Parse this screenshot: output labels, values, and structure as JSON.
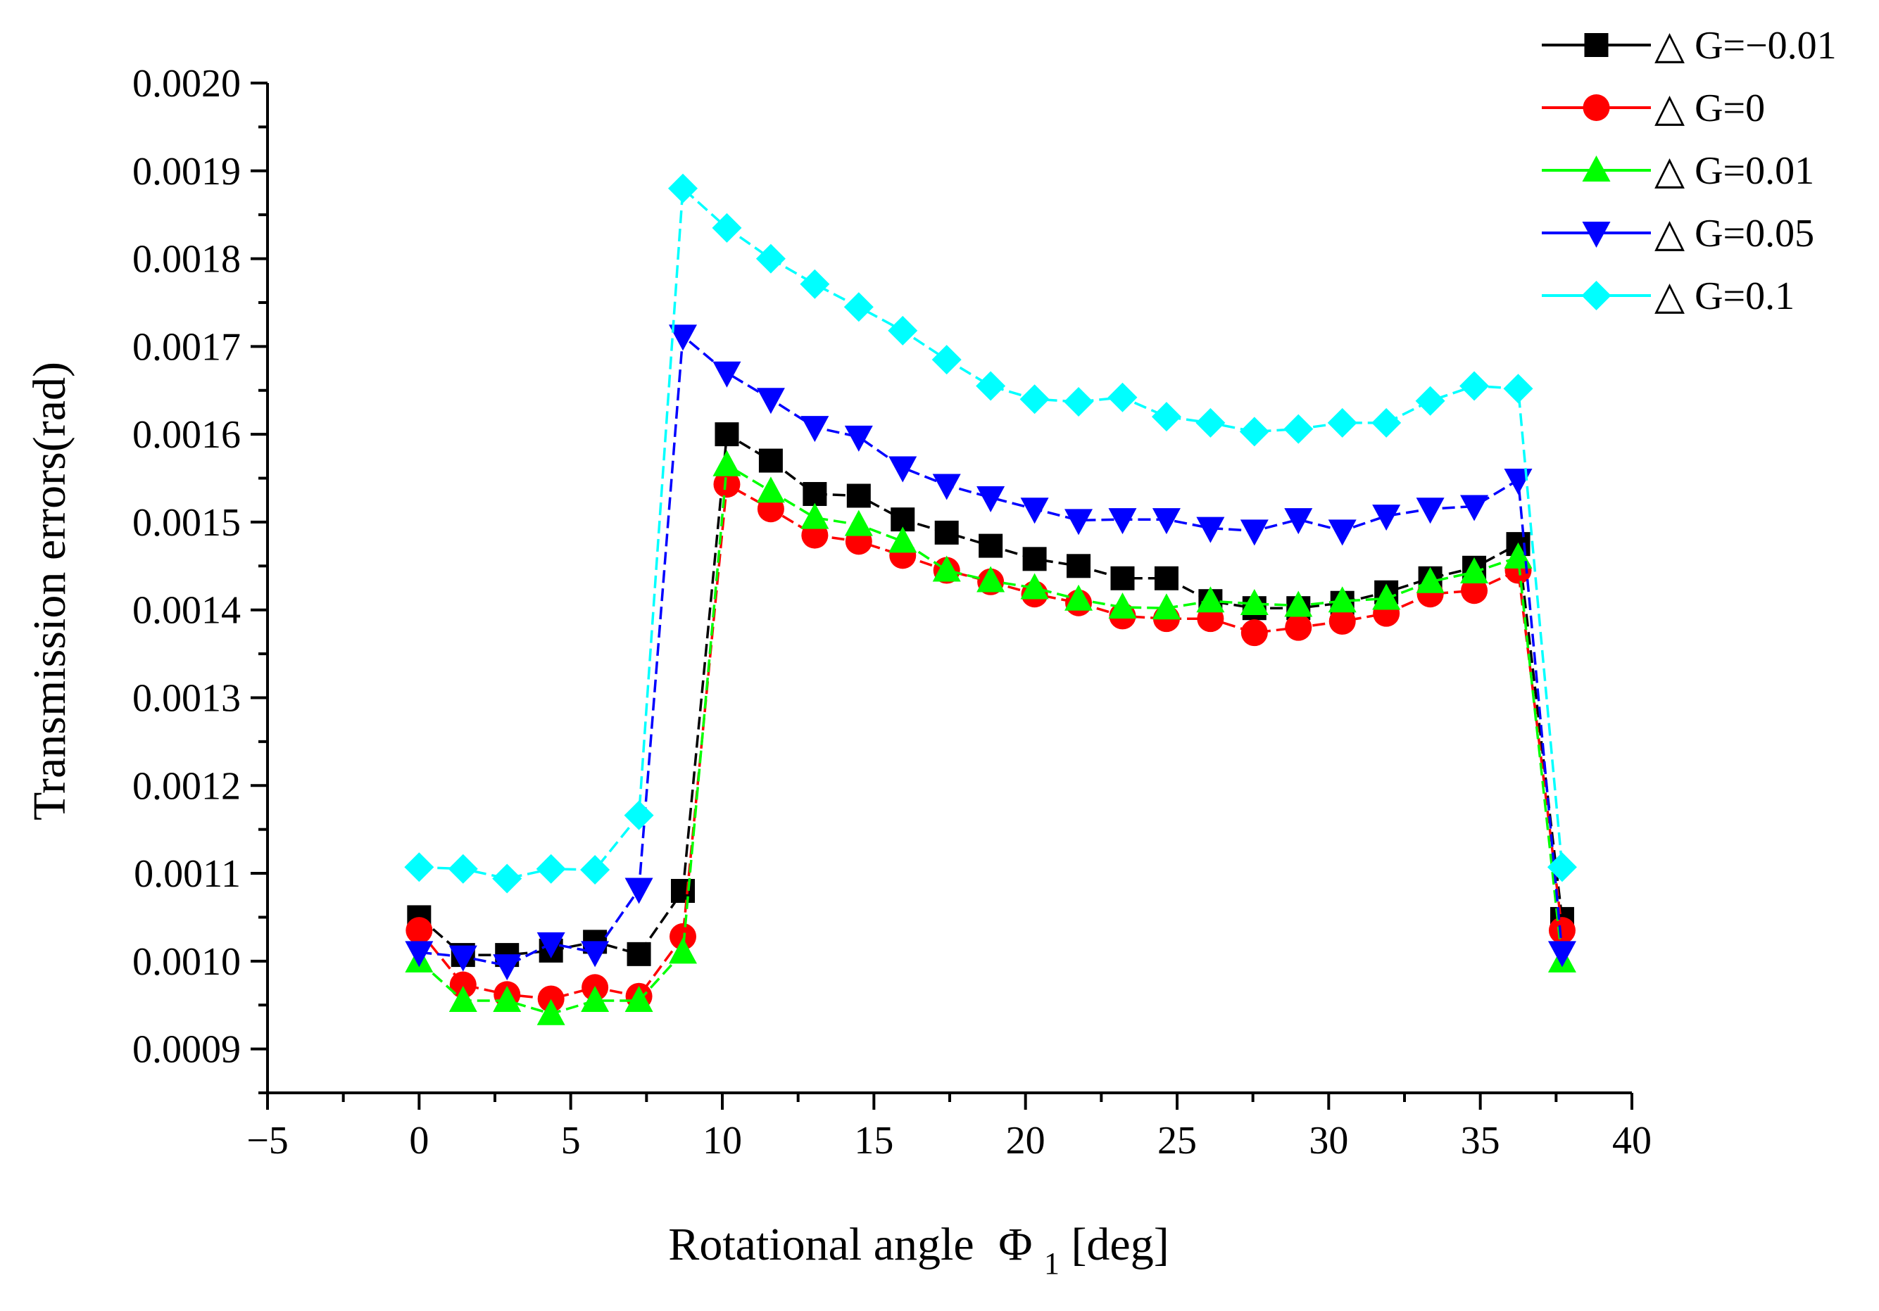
{
  "chart_data": {
    "type": "line",
    "title": "",
    "xlabel": "Rotational angle",
    "xlabel_symbol": "Φ",
    "xlabel_sub": "1",
    "xlabel_unit": "[deg]",
    "ylabel": "Transmission errors(rad)",
    "xlim": [
      -5,
      40
    ],
    "ylim": [
      0.00085,
      0.002
    ],
    "xticks": [
      "−5",
      "0",
      "5",
      "10",
      "15",
      "20",
      "25",
      "30",
      "35",
      "40"
    ],
    "xtick_values": [
      -5,
      0,
      5,
      10,
      15,
      20,
      25,
      30,
      35,
      40
    ],
    "yticks": [
      "0.0009",
      "0.0010",
      "0.0011",
      "0.0012",
      "0.0013",
      "0.0014",
      "0.0015",
      "0.0016",
      "0.0017",
      "0.0018",
      "0.0019",
      "0.0020"
    ],
    "ytick_values": [
      0.0009,
      0.001,
      0.0011,
      0.0012,
      0.0013,
      0.0014,
      0.0015,
      0.0016,
      0.0017,
      0.0018,
      0.0019,
      0.002
    ],
    "grid": false,
    "legend_position": "top-right",
    "x": [
      0,
      1.45,
      2.9,
      4.35,
      5.8,
      7.25,
      8.7,
      10.15,
      11.6,
      13.05,
      14.5,
      15.95,
      17.4,
      18.85,
      20.3,
      21.75,
      23.2,
      24.65,
      26.1,
      27.55,
      29.0,
      30.45,
      31.9,
      33.35,
      34.8,
      36.25,
      37.7
    ],
    "series": [
      {
        "name": "△ G=−0.01",
        "color": "#000000",
        "marker": "square",
        "values": [
          0.00105,
          0.001007,
          0.001007,
          0.001012,
          0.001022,
          0.001008,
          0.00108,
          0.0016,
          0.00157,
          0.001532,
          0.00153,
          0.001503,
          0.001488,
          0.001473,
          0.001458,
          0.00145,
          0.001436,
          0.001436,
          0.00141,
          0.001402,
          0.001402,
          0.001408,
          0.00142,
          0.001436,
          0.001448,
          0.001475,
          0.001048
        ]
      },
      {
        "name": "△ G=0",
        "color": "#ff0000",
        "marker": "circle",
        "values": [
          0.001035,
          0.000973,
          0.000962,
          0.000957,
          0.00097,
          0.00096,
          0.001028,
          0.001543,
          0.001515,
          0.001485,
          0.001478,
          0.001462,
          0.001445,
          0.001432,
          0.001418,
          0.001408,
          0.001393,
          0.00139,
          0.00139,
          0.001374,
          0.00138,
          0.001387,
          0.001396,
          0.001418,
          0.001422,
          0.001445,
          0.001035
        ]
      },
      {
        "name": "△ G=0.01",
        "color": "#00ff00",
        "marker": "triangle-up",
        "values": [
          0.001,
          0.000955,
          0.000955,
          0.00094,
          0.000955,
          0.000955,
          0.00101,
          0.001565,
          0.001535,
          0.001505,
          0.001497,
          0.001478,
          0.001445,
          0.001433,
          0.001425,
          0.001412,
          0.001403,
          0.001402,
          0.00141,
          0.001407,
          0.001405,
          0.00141,
          0.001413,
          0.001432,
          0.001443,
          0.00146,
          0.001
        ]
      },
      {
        "name": "△ G=0.05",
        "color": "#0000ff",
        "marker": "triangle-down",
        "values": [
          0.00101,
          0.001005,
          0.000995,
          0.00102,
          0.00101,
          0.001082,
          0.001712,
          0.00167,
          0.00164,
          0.001608,
          0.001597,
          0.001562,
          0.001542,
          0.001528,
          0.001515,
          0.001502,
          0.001503,
          0.001503,
          0.001493,
          0.00149,
          0.001503,
          0.00149,
          0.001507,
          0.001515,
          0.001518,
          0.001548,
          0.00101
        ]
      },
      {
        "name": "△ G=0.1",
        "color": "#00ffff",
        "marker": "diamond",
        "values": [
          0.001107,
          0.001105,
          0.001094,
          0.001105,
          0.001104,
          0.001166,
          0.00188,
          0.001835,
          0.0018,
          0.001771,
          0.001745,
          0.001718,
          0.001685,
          0.001655,
          0.00164,
          0.001637,
          0.001642,
          0.00162,
          0.001613,
          0.001603,
          0.001606,
          0.001613,
          0.001613,
          0.001638,
          0.001655,
          0.001652,
          0.001107
        ]
      }
    ]
  }
}
